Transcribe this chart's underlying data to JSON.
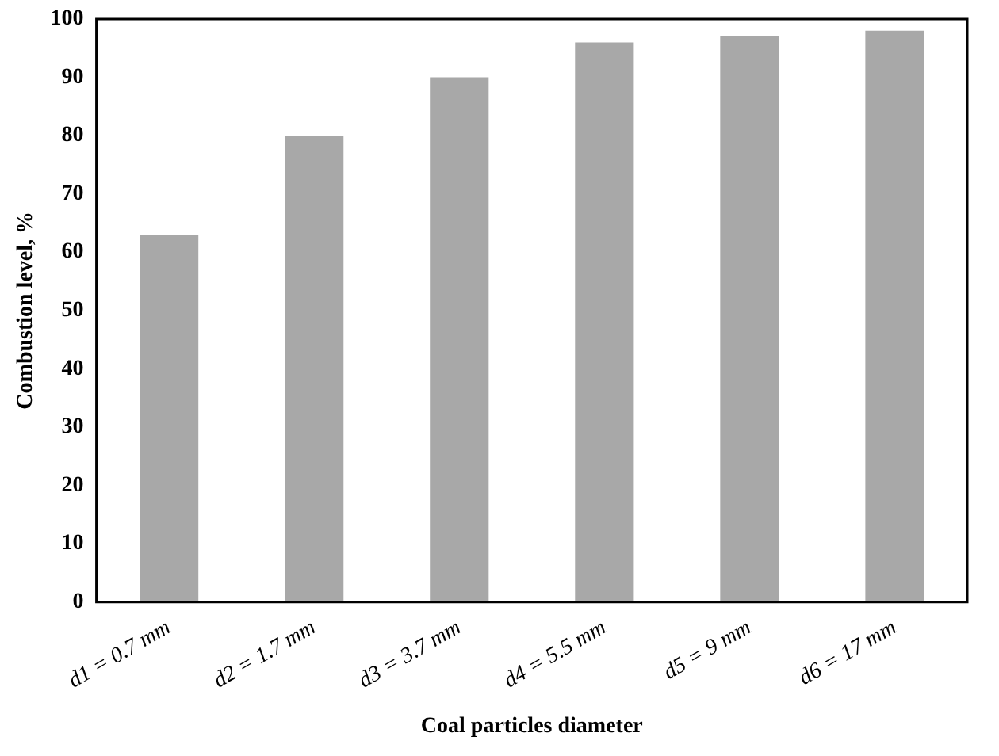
{
  "chart_data": {
    "type": "bar",
    "xlabel": "Coal particles diameter",
    "ylabel": "Combustion level, %",
    "categories": [
      "d1 = 0.7 mm",
      "d2 = 1.7 mm",
      "d3 = 3.7 mm",
      "d4 = 5.5 mm",
      "d5 = 9 mm",
      "d6 = 17 mm"
    ],
    "values": [
      63,
      80,
      90,
      96,
      97,
      98
    ],
    "color": "#a8a8a8",
    "ylim": [
      0,
      100
    ],
    "yticks": [
      0,
      10,
      20,
      30,
      40,
      50,
      60,
      70,
      80,
      90,
      100
    ],
    "grid": false,
    "legend": false
  }
}
